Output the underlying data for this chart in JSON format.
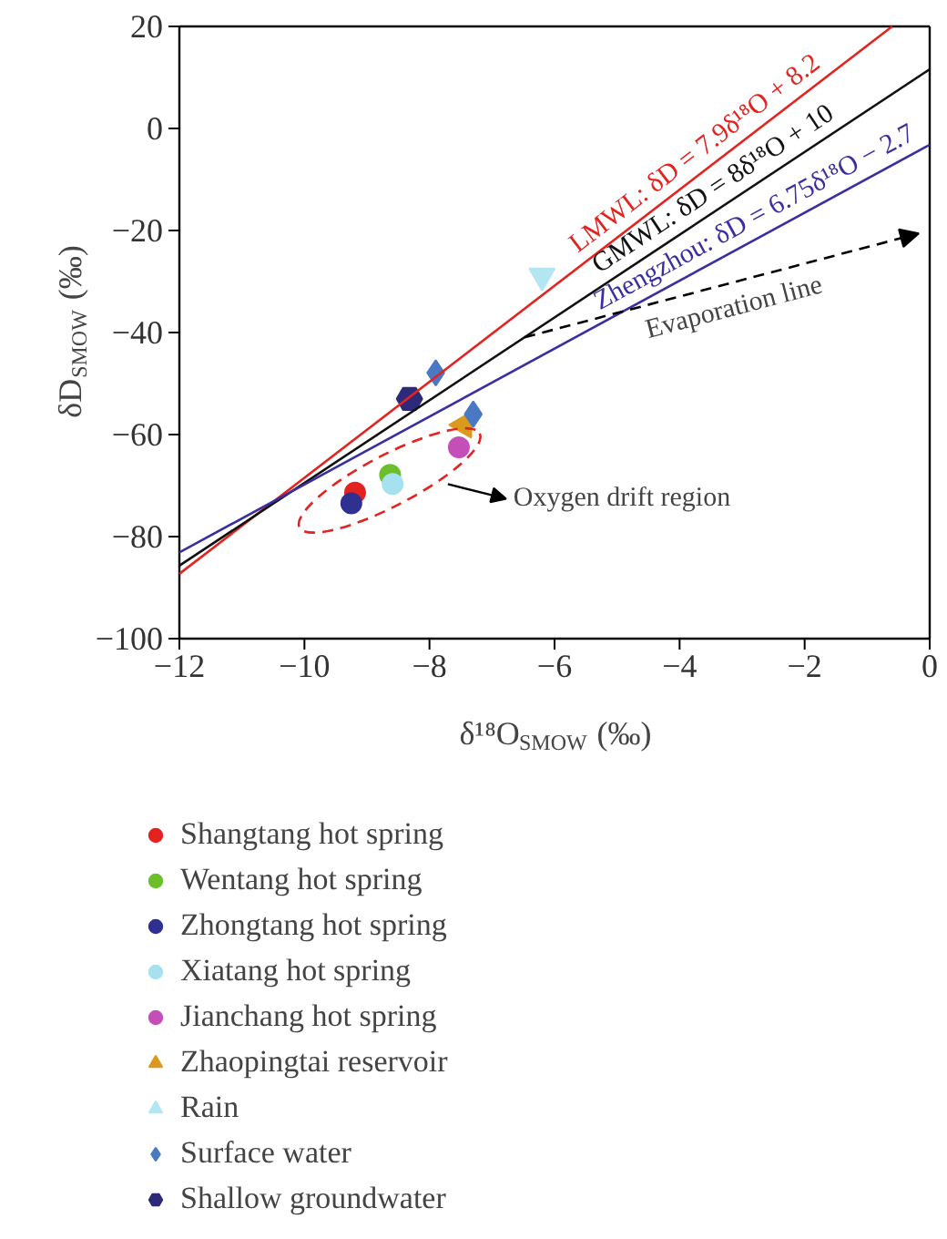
{
  "chart_data": {
    "type": "scatter",
    "xlabel": "δ¹⁸O$_{SMOW}$ (‰)",
    "ylabel": "δD$_{SMOW}$ (‰)",
    "xlim": [
      -12,
      0
    ],
    "ylim": [
      -100,
      20
    ],
    "xticks": [
      -12,
      -10,
      -8,
      -6,
      -4,
      -2,
      0
    ],
    "yticks": [
      -100,
      -80,
      -60,
      -40,
      -20,
      0,
      20
    ],
    "grid": false,
    "legend": "bottom",
    "series": [
      {
        "name": "Shangtang hot spring",
        "color": "#e3231f",
        "marker": "circle",
        "x": [
          -9.19
        ],
        "values": [
          -71.4
        ]
      },
      {
        "name": "Wentang hot spring",
        "color": "#6abf2a",
        "marker": "circle",
        "x": [
          -8.63
        ],
        "values": [
          -67.9
        ]
      },
      {
        "name": "Zhongtang hot spring",
        "color": "#2e3192",
        "marker": "circle",
        "x": [
          -9.25
        ],
        "values": [
          -73.5
        ]
      },
      {
        "name": "Xiatang hot spring",
        "color": "#a6e1f0",
        "marker": "circle",
        "x": [
          -8.59
        ],
        "values": [
          -69.7
        ]
      },
      {
        "name": "Jianchang hot spring",
        "color": "#c54fb8",
        "marker": "circle",
        "x": [
          -7.53
        ],
        "values": [
          -62.5
        ]
      },
      {
        "name": "Zhaopingtai reservoir",
        "color": "#d99a1e",
        "marker": "triangle",
        "x": [
          -7.45
        ],
        "values": [
          -58.1
        ]
      },
      {
        "name": "Rain",
        "color": "#b3e6f2",
        "marker": "triangle",
        "x": [
          -6.2
        ],
        "values": [
          -28.9
        ]
      },
      {
        "name": "Surface water",
        "color": "#4a79c4",
        "marker": "diamond",
        "x": [
          -7.9,
          -7.3
        ],
        "values": [
          -47.9,
          -56.0
        ]
      },
      {
        "name": "Shallow groundwater",
        "color": "#2e2a7a",
        "x": [
          -8.32
        ],
        "values": [
          -53.0
        ]
      },
      {
        "name": "LMWL: δD = 7.9δ¹⁸O + 8.2",
        "type": "line",
        "color": "#e3231f",
        "x": [
          -12,
          -0.6
        ],
        "values": [
          -87.3,
          20
        ]
      },
      {
        "name": "GMWL: δD = 8δ¹⁸O + 10",
        "type": "line",
        "color": "#111111",
        "x": [
          -12,
          0
        ],
        "values": [
          -85.7,
          11.6
        ]
      },
      {
        "name": "Zhengzhou: δD = 6.75δ¹⁸O − 2.7",
        "type": "line",
        "color": "#3a2fa0",
        "x": [
          -12,
          0
        ],
        "values": [
          -83.1,
          -3.2
        ]
      }
    ],
    "annotations": [
      "Evaporation line",
      "Oxygen drift region"
    ]
  }
}
